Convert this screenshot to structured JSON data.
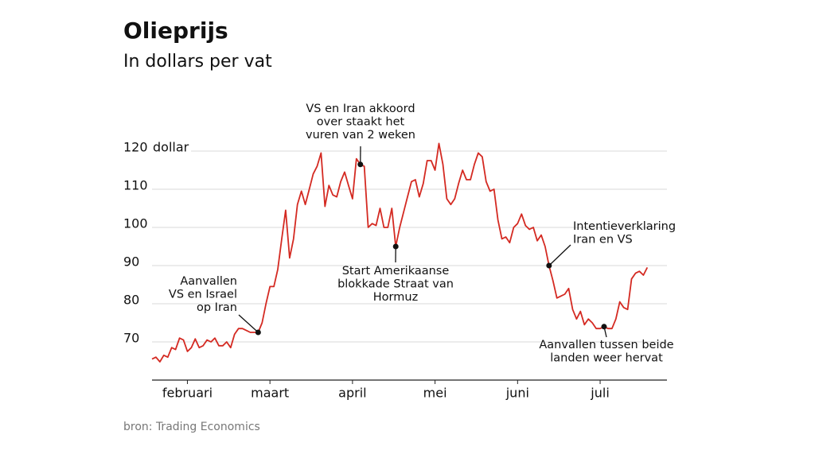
{
  "chart_data": {
    "type": "line",
    "title": "Olieprijs",
    "subtitle": "In dollars per vat",
    "y_unit": "dollar",
    "source": "bron: Trading Economics",
    "categories": [
      null,
      null,
      null,
      null,
      null,
      null,
      null,
      null,
      null,
      "februari",
      null,
      null,
      null,
      null,
      null,
      null,
      null,
      null,
      null,
      null,
      null,
      null,
      null,
      null,
      null,
      null,
      null,
      null,
      null,
      null,
      "maart",
      null,
      null,
      null,
      null,
      null,
      null,
      null,
      null,
      null,
      null,
      null,
      null,
      null,
      null,
      null,
      null,
      null,
      null,
      null,
      null,
      "april",
      null,
      null,
      null,
      null,
      null,
      null,
      null,
      null,
      null,
      null,
      null,
      null,
      null,
      null,
      null,
      null,
      null,
      null,
      null,
      null,
      "mei",
      null,
      null,
      null,
      null,
      null,
      null,
      null,
      null,
      null,
      null,
      null,
      null,
      null,
      null,
      null,
      null,
      null,
      null,
      null,
      null,
      "juni",
      null,
      null,
      null,
      null,
      null,
      null,
      null,
      null,
      null,
      null,
      null,
      null,
      null,
      null,
      null,
      null,
      null,
      null,
      null,
      null,
      "juli",
      null,
      null,
      null,
      null,
      null,
      null,
      null,
      null,
      null,
      null,
      null,
      null,
      null,
      null,
      null,
      null,
      null
    ],
    "series": [
      {
        "color": "#d42a22",
        "values": [
          65.5,
          66,
          64.8,
          66.5,
          66,
          68.5,
          68,
          71,
          70.5,
          67.5,
          68.5,
          70.8,
          68.5,
          69,
          70.5,
          70,
          71,
          69,
          69,
          70,
          68.5,
          72,
          73.5,
          73.5,
          73,
          72.5,
          72.5,
          72.5,
          75,
          80,
          84.5,
          84.5,
          89,
          97,
          104.5,
          92,
          97,
          106,
          109.5,
          106,
          110,
          114,
          116,
          119.5,
          105.5,
          111,
          108.5,
          108,
          112,
          114.5,
          111,
          107.5,
          118,
          116.5,
          116,
          100,
          101,
          100.5,
          105,
          100,
          100,
          105,
          95,
          100,
          104,
          108,
          112,
          112.5,
          108,
          111.5,
          117.5,
          117.5,
          115,
          122,
          116.5,
          107.5,
          106,
          107.5,
          111.5,
          115,
          112.5,
          112.5,
          116.5,
          119.5,
          118.5,
          112,
          109.5,
          110,
          102,
          97,
          97.5,
          96,
          100,
          101,
          103.5,
          100.5,
          99.5,
          100,
          96.5,
          98,
          95,
          90,
          86,
          81.5,
          82,
          82.5,
          84,
          78.5,
          76,
          78,
          74.5,
          76,
          75,
          73.5,
          73.5,
          74,
          73.5,
          73.5,
          76,
          80.5,
          79,
          78.5,
          86.5,
          88,
          88.5,
          87.5,
          89.5,
          null,
          null,
          null,
          null,
          null
        ]
      }
    ],
    "ylim": [
      60,
      125
    ],
    "yticks": [
      70,
      80,
      90,
      100,
      110,
      120
    ],
    "grid": true,
    "annotations": [
      [
        "Aanvallen",
        "VS en Israel",
        "op Iran"
      ],
      [
        "VS en Iran akkoord",
        "over staakt het",
        "vuren van 2 weken"
      ],
      [
        "Start Amerikaanse",
        "blokkade Straat van",
        "Hormuz"
      ],
      [
        "Intentieverklaring",
        "Iran en VS"
      ],
      [
        "Aanvallen tussen beide",
        "landen weer hervat"
      ]
    ]
  }
}
